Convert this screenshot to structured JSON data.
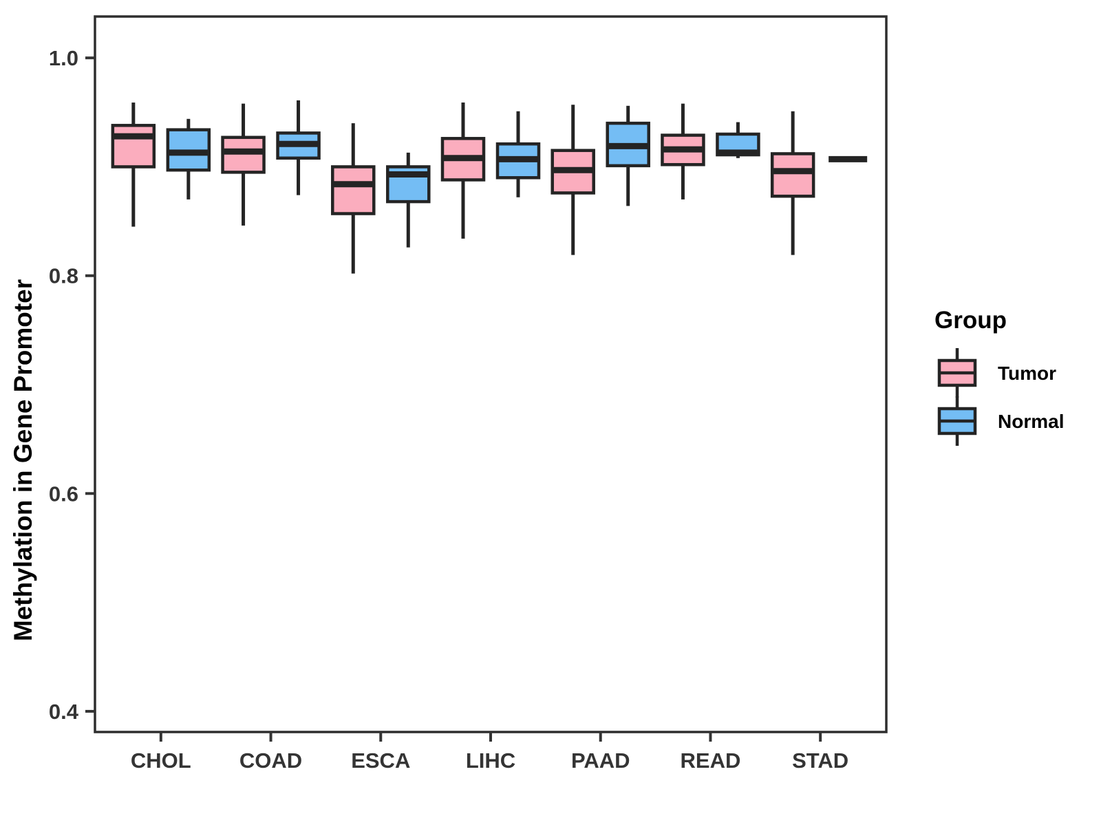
{
  "figure": {
    "title": "",
    "ylabel": "Methylation in Gene Promoter",
    "legend_title": "Group"
  },
  "chart_data": {
    "type": "boxplot",
    "title": "",
    "xlabel": "",
    "ylabel": "Methylation in Gene Promoter",
    "categories": [
      "CHOL",
      "COAD",
      "ESCA",
      "LIHC",
      "PAAD",
      "READ",
      "STAD"
    ],
    "y_axis": {
      "ticks": [
        1.0,
        0.8,
        0.6,
        0.4
      ],
      "tick_labels": [
        "1.0",
        "0.8",
        "0.6",
        "0.4"
      ],
      "range": [
        0.381,
        1.038
      ]
    },
    "grid": false,
    "legend": {
      "title": "Group",
      "position": "right",
      "entries": [
        {
          "label": "Tumor",
          "color": "#FBADBE"
        },
        {
          "label": "Normal",
          "color": "#74BDF4"
        }
      ]
    },
    "series": [
      {
        "name": "Tumor",
        "color": "#FBADBE",
        "boxes": [
          {
            "category": "CHOL",
            "min": 0.845,
            "q1": 0.9,
            "median": 0.928,
            "q3": 0.938,
            "max": 0.959
          },
          {
            "category": "COAD",
            "min": 0.846,
            "q1": 0.895,
            "median": 0.914,
            "q3": 0.927,
            "max": 0.958
          },
          {
            "category": "ESCA",
            "min": 0.802,
            "q1": 0.857,
            "median": 0.884,
            "q3": 0.9,
            "max": 0.94
          },
          {
            "category": "LIHC",
            "min": 0.834,
            "q1": 0.888,
            "median": 0.908,
            "q3": 0.926,
            "max": 0.959
          },
          {
            "category": "PAAD",
            "min": 0.819,
            "q1": 0.876,
            "median": 0.897,
            "q3": 0.915,
            "max": 0.957
          },
          {
            "category": "READ",
            "min": 0.87,
            "q1": 0.902,
            "median": 0.916,
            "q3": 0.929,
            "max": 0.958
          },
          {
            "category": "STAD",
            "min": 0.819,
            "q1": 0.873,
            "median": 0.896,
            "q3": 0.912,
            "max": 0.951
          }
        ]
      },
      {
        "name": "Normal",
        "color": "#74BDF4",
        "boxes": [
          {
            "category": "CHOL",
            "min": 0.87,
            "q1": 0.897,
            "median": 0.913,
            "q3": 0.934,
            "max": 0.944
          },
          {
            "category": "COAD",
            "min": 0.874,
            "q1": 0.908,
            "median": 0.921,
            "q3": 0.931,
            "max": 0.961
          },
          {
            "category": "ESCA",
            "min": 0.826,
            "q1": 0.868,
            "median": 0.893,
            "q3": 0.9,
            "max": 0.913
          },
          {
            "category": "LIHC",
            "min": 0.872,
            "q1": 0.89,
            "median": 0.907,
            "q3": 0.921,
            "max": 0.951
          },
          {
            "category": "PAAD",
            "min": 0.864,
            "q1": 0.901,
            "median": 0.919,
            "q3": 0.94,
            "max": 0.956
          },
          {
            "category": "READ",
            "min": 0.908,
            "q1": 0.911,
            "median": 0.913,
            "q3": 0.93,
            "max": 0.941
          },
          {
            "category": "STAD",
            "min": 0.907,
            "q1": 0.907,
            "median": 0.907,
            "q3": 0.907,
            "max": 0.907
          }
        ]
      }
    ],
    "style": {
      "box_border_color": "#242424",
      "median_color": "#242424",
      "whisker_color": "#242424",
      "axis_text_color": "#343434",
      "panel_border_color": "#2e2e2e",
      "background": "#FFFFFF"
    }
  }
}
